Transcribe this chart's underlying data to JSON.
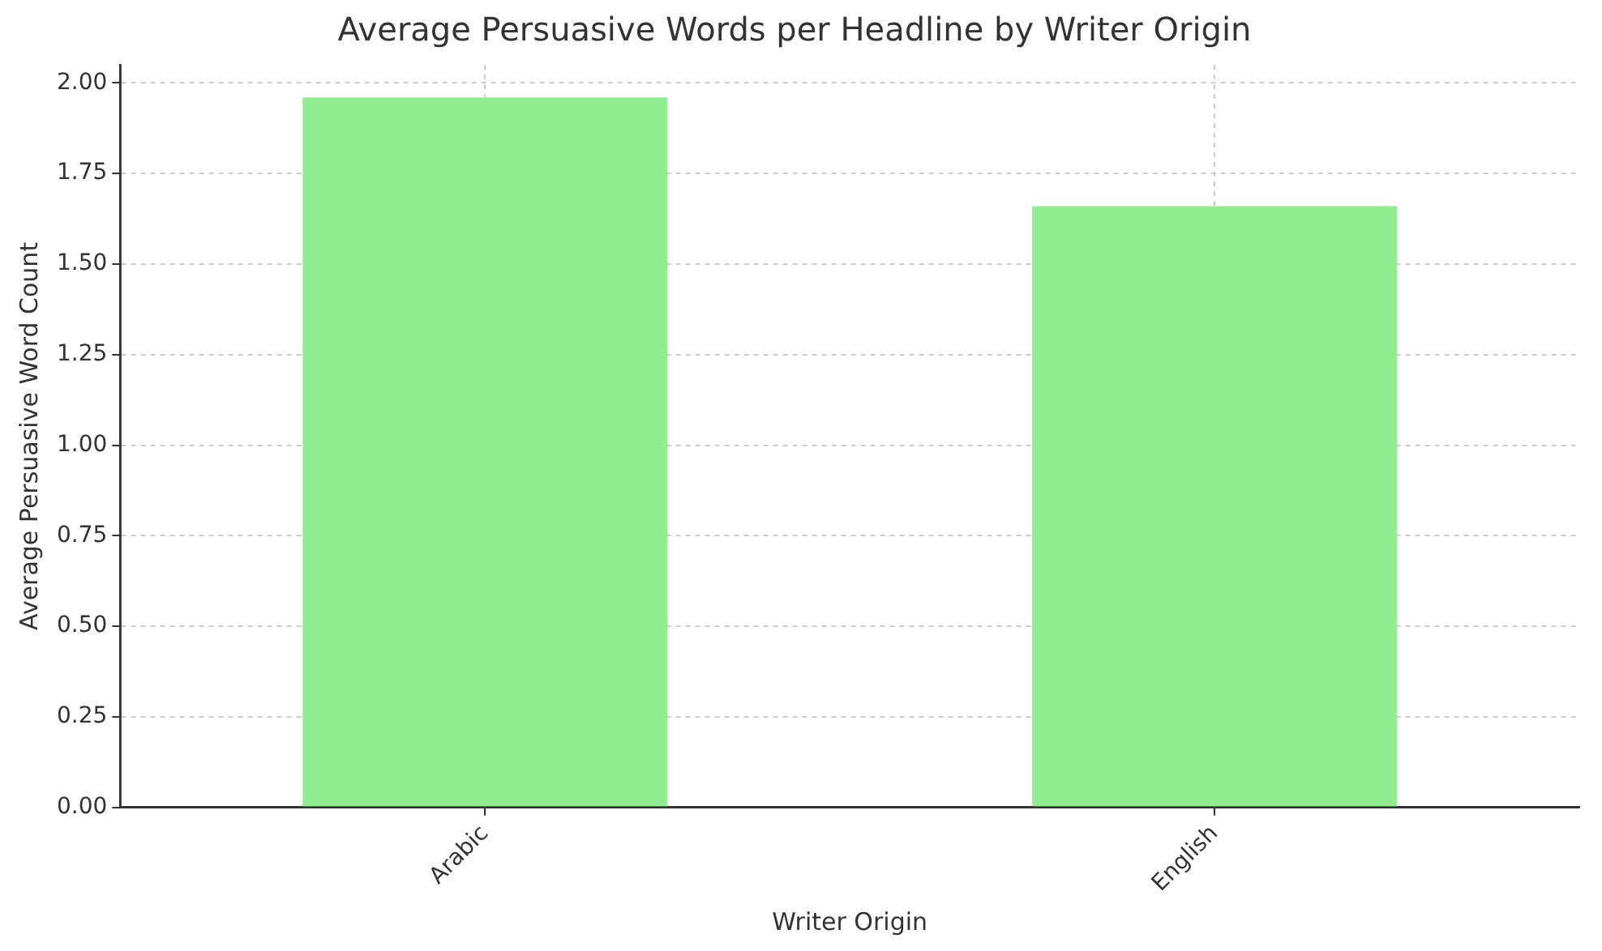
{
  "chart_data": {
    "type": "bar",
    "title": "Average Persuasive Words per Headline by Writer Origin",
    "xlabel": "Writer Origin",
    "ylabel": "Average Persuasive Word Count",
    "categories": [
      "Arabic",
      "English"
    ],
    "values": [
      1.96,
      1.66
    ],
    "color": "#90ee90",
    "ylim": [
      0,
      2.05
    ],
    "yticks": [
      {
        "value": 0,
        "label": "0.00"
      },
      {
        "value": 0.25,
        "label": "0.25"
      },
      {
        "value": 0.5,
        "label": "0.50"
      },
      {
        "value": 0.75,
        "label": "0.75"
      },
      {
        "value": 1,
        "label": "1.00"
      },
      {
        "value": 1.25,
        "label": "1.25"
      },
      {
        "value": 1.5,
        "label": "1.50"
      },
      {
        "value": 1.75,
        "label": "1.75"
      },
      {
        "value": 2,
        "label": "2.00"
      }
    ],
    "grid": true
  }
}
